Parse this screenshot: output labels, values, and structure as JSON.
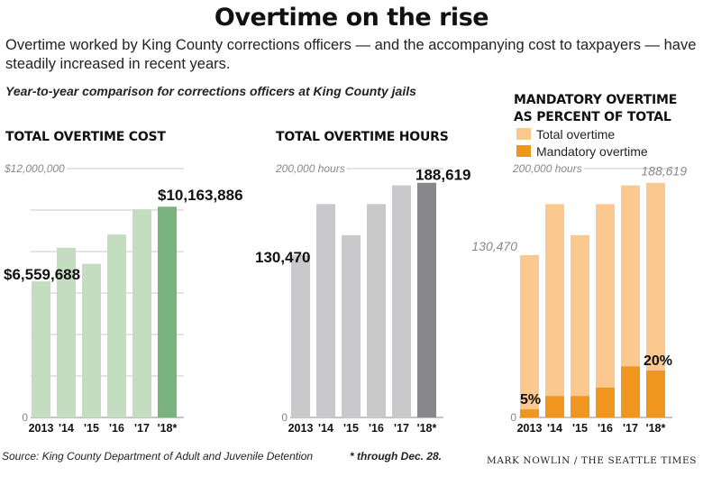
{
  "header": {
    "title": "Overtime on the rise",
    "intro": "Overtime worked by King County corrections officers — and the accompanying cost to taxpayers — have steadily increased in recent years.",
    "dek": "Year-to-year comparison for corrections officers at King County jails"
  },
  "legend": {
    "total_label": "Total overtime",
    "mandatory_label": "Mandatory overtime"
  },
  "colors": {
    "cost_bar": "#c4dcc0",
    "cost_highlight": "#78b380",
    "hours_bar": "#c9c9cb",
    "hours_highlight": "#88888c",
    "total_overtime": "#fbc98f",
    "mandatory_overtime": "#f0961e",
    "gridline": "#c8c8c8"
  },
  "chart_data": [
    {
      "type": "bar",
      "title": "TOTAL OVERTIME COST",
      "categories": [
        "2013",
        "'14",
        "'15",
        "'16",
        "'17",
        "'18*"
      ],
      "values": [
        6559688,
        8180000,
        7410000,
        8820000,
        10040000,
        10163886
      ],
      "highlight_index": 5,
      "ylim": [
        0,
        12000000
      ],
      "gridlines": [
        0,
        2000000,
        4000000,
        6000000,
        8000000,
        10000000,
        12000000
      ],
      "tick_labels": [
        {
          "value": 12000000,
          "text": "$12,000,000"
        },
        {
          "value": 0,
          "text": "0"
        }
      ],
      "data_labels": [
        {
          "index": 0,
          "text": "$6,559,688"
        },
        {
          "index": 5,
          "text": "$10,163,886"
        }
      ]
    },
    {
      "type": "bar",
      "title": "TOTAL OVERTIME HOURS",
      "categories": [
        "2013",
        "'14",
        "'15",
        "'16",
        "'17",
        "'18*"
      ],
      "values": [
        130470,
        171500,
        146500,
        171500,
        186500,
        188619
      ],
      "highlight_index": 5,
      "ylim": [
        0,
        200000
      ],
      "gridlines": [
        0,
        200000
      ],
      "tick_labels": [
        {
          "value": 200000,
          "text": "200,000 hours"
        },
        {
          "value": 0,
          "text": "0"
        }
      ],
      "data_labels": [
        {
          "index": 0,
          "text": "130,470"
        },
        {
          "index": 5,
          "text": "188,619"
        }
      ]
    },
    {
      "type": "bar",
      "title": "MANDATORY OVERTIME AS PERCENT OF TOTAL",
      "categories": [
        "2013",
        "'14",
        "'15",
        "'16",
        "'17",
        "'18*"
      ],
      "series": [
        {
          "name": "Total overtime",
          "values": [
            130470,
            171500,
            146500,
            171500,
            186500,
            188619
          ]
        },
        {
          "name": "Mandatory overtime",
          "values": [
            6500,
            17200,
            17200,
            24000,
            41000,
            37700
          ]
        }
      ],
      "ylim": [
        0,
        200000
      ],
      "gridlines": [
        0,
        200000
      ],
      "tick_labels": [
        {
          "value": 200000,
          "text": "200,000 hours"
        },
        {
          "value": 0,
          "text": "0"
        }
      ],
      "data_labels": [
        {
          "index": 0,
          "series": 0,
          "text": "130,470"
        },
        {
          "index": 5,
          "series": 0,
          "text": "188,619"
        },
        {
          "index": 0,
          "series": 1,
          "text": "5%"
        },
        {
          "index": 5,
          "series": 1,
          "text": "20%"
        }
      ]
    }
  ],
  "footer": {
    "source": "Source: King County Department of Adult and Juvenile Detention",
    "note": "* through Dec. 28.",
    "credit": "MARK NOWLIN / THE SEATTLE TIMES"
  }
}
